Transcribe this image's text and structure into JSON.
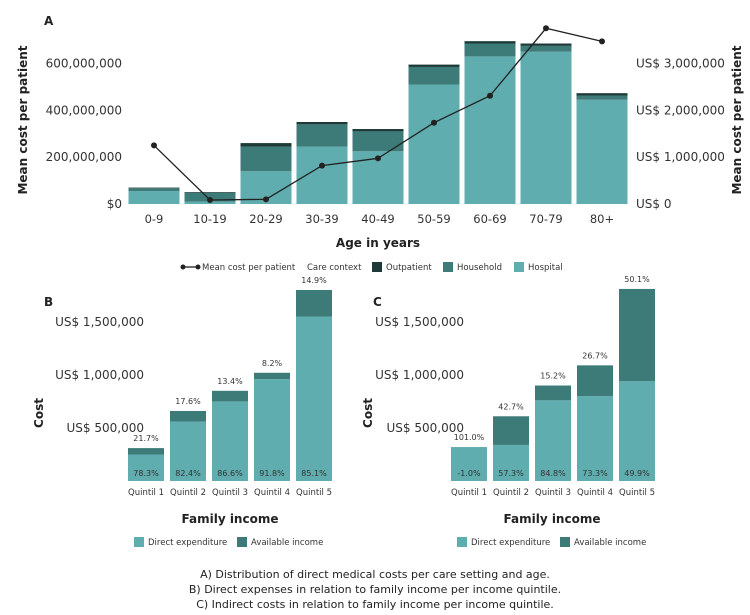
{
  "colors": {
    "hospital": "#5fadae",
    "household": "#3d7b78",
    "outpatient": "#1d3a38",
    "direct_expenditure": "#5fadae",
    "available_income": "#3d7b78",
    "line": "#222222"
  },
  "chart_data": [
    {
      "panel_label": "A",
      "type": "bar",
      "stacked": true,
      "categories": [
        "0-9",
        "10-19",
        "20-29",
        "30-39",
        "40-49",
        "50-59",
        "60-69",
        "70-79",
        "80+"
      ],
      "xlabel": "Age in years",
      "ylabel": "Mean cost per patient",
      "y2label": "Mean cost per patient",
      "ylim": [
        0,
        700000000
      ],
      "y_ticks": [
        0,
        200000000,
        400000000,
        600000000
      ],
      "y_tick_labels": [
        "$0",
        "200,000,000",
        "400,000,000",
        "600,000,000"
      ],
      "y2lim": [
        0,
        3500000
      ],
      "y2_ticks": [
        0,
        1000000,
        2000000,
        3000000
      ],
      "y2_tick_labels": [
        "US$ 0",
        "US$ 1,000,000",
        "US$ 2,000,000",
        "US$ 3,000,000"
      ],
      "series": [
        {
          "name": "Hospital",
          "values": [
            55000000,
            10000000,
            140000000,
            245000000,
            225000000,
            510000000,
            630000000,
            650000000,
            445000000
          ]
        },
        {
          "name": "Household",
          "values": [
            12000000,
            38000000,
            105000000,
            95000000,
            85000000,
            75000000,
            55000000,
            25000000,
            18000000
          ]
        },
        {
          "name": "Outpatient",
          "values": [
            3000000,
            3000000,
            15000000,
            10000000,
            10000000,
            10000000,
            10000000,
            10000000,
            10000000
          ]
        }
      ],
      "line_series": {
        "name": "Mean cost per patient",
        "axis": "right",
        "values": [
          1250000,
          85000,
          100000,
          820000,
          975000,
          1735000,
          2310000,
          3750000,
          3470000
        ]
      },
      "legend": [
        "Mean cost per patient",
        "Care context",
        "Outpatient",
        "Household",
        "Hospital"
      ]
    },
    {
      "panel_label": "B",
      "type": "bar",
      "stacked": true,
      "categories": [
        "Quintil 1",
        "Quintil 2",
        "Quintil 3",
        "Quintil 4",
        "Quintil 5"
      ],
      "xlabel": "Family income",
      "ylabel": "Cost",
      "ylim": [
        0,
        1800000
      ],
      "y_ticks": [
        500000,
        1000000,
        1500000
      ],
      "y_tick_labels": [
        "US$ 500,000",
        "US$ 1,000,000",
        "US$ 1,500,000"
      ],
      "series": [
        {
          "name": "Direct expenditure",
          "values": [
            250000,
            560000,
            750000,
            960000,
            1550000
          ]
        },
        {
          "name": "Available income",
          "values": [
            60000,
            100000,
            100000,
            60000,
            250000
          ]
        }
      ],
      "bottom_labels": [
        "78.3%",
        "82.4%",
        "86.6%",
        "91.8%",
        "85.1%"
      ],
      "top_labels": [
        "21.7%",
        "17.6%",
        "13.4%",
        "8.2%",
        "14.9%"
      ],
      "legend": [
        "Direct expenditure",
        "Available income"
      ]
    },
    {
      "panel_label": "C",
      "type": "bar",
      "stacked": true,
      "categories": [
        "Quintil 1",
        "Quintil 2",
        "Quintil 3",
        "Quintil 4",
        "Quintil 5"
      ],
      "xlabel": "Family income",
      "ylabel": "Cost",
      "ylim": [
        0,
        1800000
      ],
      "y_ticks": [
        500000,
        1000000,
        1500000
      ],
      "y_tick_labels": [
        "US$ 500,000",
        "US$ 1,000,000",
        "US$ 1,500,000"
      ],
      "series": [
        {
          "name": "Direct expenditure",
          "values": [
            320000,
            340000,
            760000,
            800000,
            940000
          ]
        },
        {
          "name": "Available income",
          "values": [
            0,
            270000,
            140000,
            290000,
            870000
          ]
        }
      ],
      "bottom_labels": [
        "-1.0%",
        "57.3%",
        "84.8%",
        "73.3%",
        "49.9%"
      ],
      "top_labels": [
        "101.0%",
        "42.7%",
        "15.2%",
        "26.7%",
        "50.1%"
      ],
      "legend": [
        "Direct expenditure",
        "Available income"
      ]
    }
  ],
  "captions": [
    "A) Distribution of direct medical costs per care setting and age.",
    "B) Direct expenses in relation to family income per income quintile.",
    "C) Indirect costs in relation to family income per income quintile."
  ]
}
